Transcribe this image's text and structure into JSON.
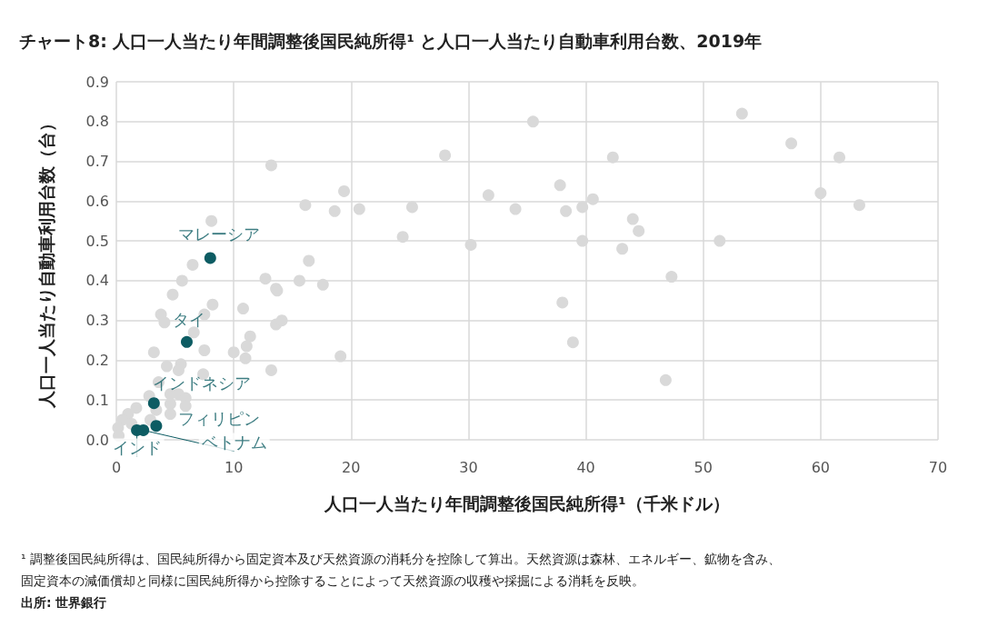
{
  "chart_data": {
    "type": "scatter",
    "title": "チャート8: 人口一人当たり年間調整後国民純所得¹ と人口一人当たり自動車利用台数、2019年",
    "xlabel": "人口一人当たり年間調整後国民純所得¹（千米ドル）",
    "ylabel": "人口一人当たり自動車利用台数（台）",
    "xlim": [
      0,
      70
    ],
    "xticks": [
      0,
      10,
      20,
      30,
      40,
      50,
      60,
      70
    ],
    "ylim": [
      0,
      0.9
    ],
    "yticks": [
      {
        "value": 0,
        "label": "0.0"
      },
      {
        "value": 0.1,
        "label": "0.1"
      },
      {
        "value": 0.2,
        "label": "0.2"
      },
      {
        "value": 0.3,
        "label": "0.3"
      },
      {
        "value": 0.4,
        "label": "0.4"
      },
      {
        "value": 0.5,
        "label": "0.5"
      },
      {
        "value": 0.6,
        "label": "0.6"
      },
      {
        "value": 0.7,
        "label": "0.7"
      },
      {
        "value": 0.8,
        "label": "0.8"
      },
      {
        "value": 0.9,
        "label": "0.9"
      }
    ],
    "grid": true,
    "marker": "circle",
    "series": [
      {
        "color": "#d9d9d9",
        "x": [
          35.5,
          53.3,
          57.5,
          61.6,
          42.3,
          28.0,
          13.2,
          37.8,
          31.7,
          19.4,
          60.0,
          63.3,
          16.1,
          25.2,
          20.7,
          18.6,
          34.0,
          38.3,
          39.7,
          40.6,
          44.0,
          44.5,
          39.7,
          51.4,
          30.2,
          24.4,
          43.1,
          47.3,
          8.1,
          16.4,
          12.7,
          13.6,
          13.7,
          15.6,
          17.6,
          13.6,
          14.1,
          10.8,
          11.4,
          11.1,
          11.0,
          10.0,
          38.0,
          38.9,
          46.8,
          19.1,
          13.2,
          6.5,
          5.6,
          4.8,
          8.2,
          3.8,
          4.1,
          7.5,
          6.6,
          7.5,
          3.2,
          4.3,
          5.5,
          5.3,
          7.4,
          3.6,
          4.6,
          5.3,
          5.9,
          2.8,
          5.9,
          4.6,
          3.4,
          1.7,
          1.0,
          0.5,
          0.15,
          4.6,
          2.9,
          0.2,
          1.3
        ],
        "values": [
          0.8,
          0.82,
          0.745,
          0.71,
          0.71,
          0.715,
          0.69,
          0.64,
          0.615,
          0.625,
          0.62,
          0.59,
          0.59,
          0.585,
          0.58,
          0.575,
          0.58,
          0.575,
          0.585,
          0.605,
          0.555,
          0.525,
          0.5,
          0.5,
          0.49,
          0.51,
          0.48,
          0.41,
          0.55,
          0.45,
          0.405,
          0.38,
          0.375,
          0.4,
          0.39,
          0.29,
          0.3,
          0.33,
          0.26,
          0.235,
          0.205,
          0.22,
          0.345,
          0.245,
          0.15,
          0.21,
          0.175,
          0.44,
          0.4,
          0.365,
          0.34,
          0.315,
          0.295,
          0.315,
          0.27,
          0.225,
          0.22,
          0.185,
          0.19,
          0.175,
          0.165,
          0.145,
          0.115,
          0.115,
          0.105,
          0.11,
          0.085,
          0.09,
          0.075,
          0.08,
          0.065,
          0.05,
          0.03,
          0.065,
          0.05,
          0.01,
          0.04
        ]
      },
      {
        "color": "#0d5c63",
        "x": [
          8.0,
          6.0,
          3.2,
          3.4,
          2.3,
          1.75
        ],
        "values": [
          0.457,
          0.246,
          0.092,
          0.035,
          0.024,
          0.024
        ]
      }
    ],
    "annotations": [
      {
        "text": "マレーシア",
        "x": 8.0,
        "y": 0.457
      },
      {
        "text": "タイ",
        "x": 6.0,
        "y": 0.246
      },
      {
        "text": "インドネシア",
        "x": 3.2,
        "y": 0.092
      },
      {
        "text": "フィリピン",
        "x": 3.4,
        "y": 0.035
      },
      {
        "text": "ベトナム",
        "x": 2.3,
        "y": 0.024
      },
      {
        "text": "インド",
        "x": 1.75,
        "y": 0.024
      },
      "¹ 調整後国民純所得は、国民純所得から固定資本及び天然資源の消耗分を控除して算出。天然資源は森林、エネルギー、鉱物を含み、",
      "固定資本の減価償却と同様に国民純所得から控除することによって天然資源の収穫や採掘による消耗を反映。",
      "出所: 世界銀行"
    ]
  }
}
